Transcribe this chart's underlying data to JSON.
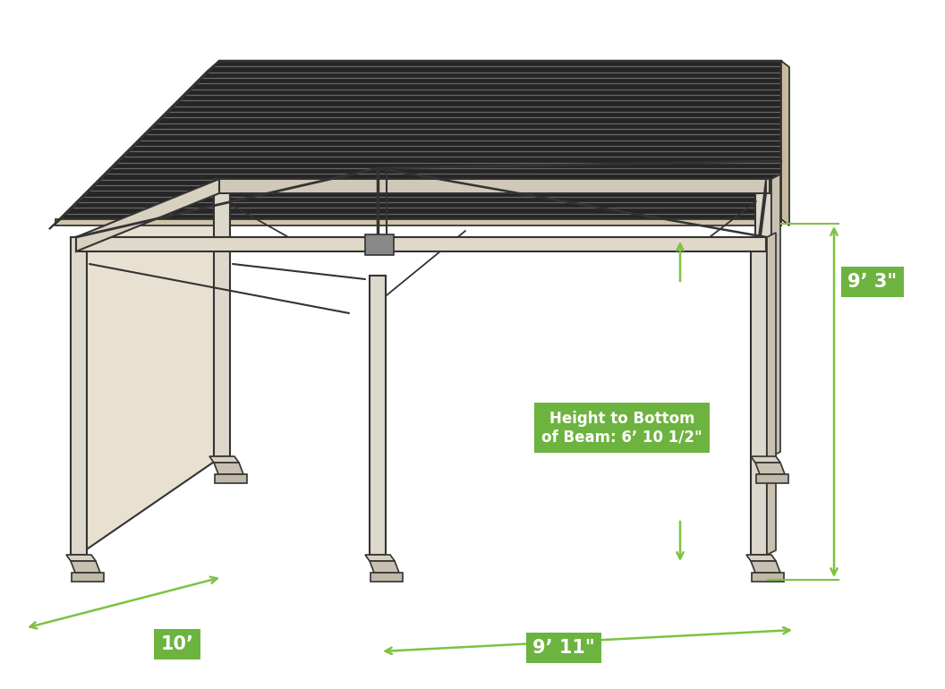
{
  "bg_color": "#ffffff",
  "structure_color": "#333333",
  "roof_dark": "#2a2a2a",
  "roof_light_line": "#888888",
  "dimension_color": "#7dc242",
  "label_bg_color": "#6db33f",
  "label_text_color": "#ffffff",
  "label_10ft": "10’",
  "label_911": "9’ 11\"",
  "label_93": "9’ 3\"",
  "label_beam": "Height to Bottom\nof Beam: 6’ 10 1/2\"",
  "label_fontsize": 15,
  "beam_label_fontsize": 12,
  "wood_color": "#c8b89a",
  "wood_dark": "#a89070"
}
